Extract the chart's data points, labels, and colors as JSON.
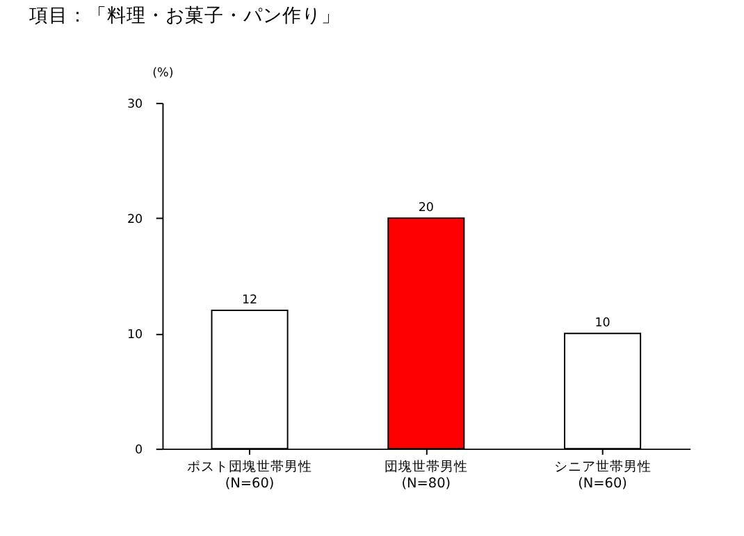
{
  "chart_data": {
    "type": "bar",
    "title": "項目：「料理・お菓子・パン作り」",
    "ylabel": "(%)",
    "categories": [
      "ポスト団塊世帯男性\n(N=60)",
      "団塊世帯男性\n(N=80)",
      "シニア世帯男性\n(N=60)"
    ],
    "values": [
      12,
      20,
      10
    ],
    "colors": [
      "#ffffff",
      "#ff0000",
      "#ffffff"
    ],
    "ylim": [
      0,
      30
    ],
    "yticks": [
      0,
      10,
      20,
      30
    ],
    "grid": false,
    "data_labels": true
  }
}
